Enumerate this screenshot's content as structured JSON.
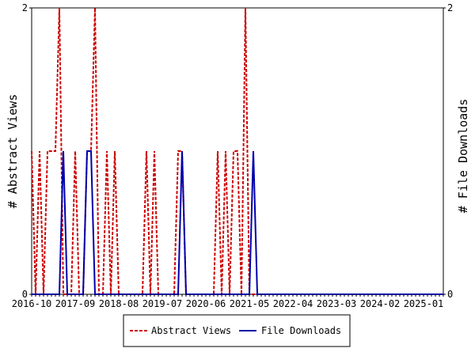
{
  "chart_data": {
    "type": "line",
    "x": [
      "2016-10",
      "2016-11",
      "2016-12",
      "2017-01",
      "2017-02",
      "2017-03",
      "2017-04",
      "2017-05",
      "2017-06",
      "2017-07",
      "2017-08",
      "2017-09",
      "2017-10",
      "2017-11",
      "2017-12",
      "2018-01",
      "2018-02",
      "2018-03",
      "2018-04",
      "2018-05",
      "2018-06",
      "2018-07",
      "2018-08",
      "2018-09",
      "2018-10",
      "2018-11",
      "2018-12",
      "2019-01",
      "2019-02",
      "2019-03",
      "2019-04",
      "2019-05",
      "2019-06",
      "2019-07",
      "2019-08",
      "2019-09",
      "2019-10",
      "2019-11",
      "2019-12",
      "2020-01",
      "2020-02",
      "2020-03",
      "2020-04",
      "2020-05",
      "2020-06",
      "2020-07",
      "2020-08",
      "2020-09",
      "2020-10",
      "2020-11",
      "2020-12",
      "2021-01",
      "2021-02",
      "2021-03",
      "2021-04",
      "2021-05",
      "2021-06",
      "2021-07",
      "2021-08",
      "2021-09",
      "2021-10",
      "2021-11",
      "2021-12",
      "2022-01",
      "2022-02",
      "2022-03",
      "2022-04",
      "2022-05",
      "2022-06",
      "2022-07",
      "2022-08",
      "2022-09",
      "2022-10",
      "2022-11",
      "2022-12",
      "2023-01",
      "2023-02",
      "2023-03",
      "2023-04",
      "2023-05",
      "2023-06",
      "2023-07",
      "2023-08",
      "2023-09",
      "2023-10",
      "2023-11",
      "2023-12",
      "2024-01",
      "2024-02",
      "2024-03",
      "2024-04",
      "2024-05",
      "2024-06",
      "2024-07",
      "2024-08",
      "2024-09",
      "2024-10",
      "2024-11",
      "2024-12",
      "2025-01",
      "2025-02",
      "2025-03",
      "2025-04",
      "2025-05",
      "2025-06"
    ],
    "x_ticks": [
      "2016-10",
      "2017-09",
      "2018-08",
      "2019-07",
      "2020-06",
      "2021-05",
      "2022-04",
      "2023-03",
      "2024-02",
      "2025-01"
    ],
    "ylim_left": [
      0,
      2
    ],
    "ylim_right": [
      0,
      2
    ],
    "y_ticks_left": [
      "0",
      "2"
    ],
    "y_ticks_right": [
      "0",
      "2"
    ],
    "ylabel_left": "# Abstract Views",
    "ylabel_right": "# File Downloads",
    "legend_position": "bottom",
    "grid": false,
    "series": [
      {
        "name": "Abstract Views",
        "color": "#cc0000",
        "style": "dashed",
        "axis": "left",
        "values": [
          1,
          0,
          1,
          0,
          1,
          1,
          1,
          2,
          0,
          0,
          0,
          1,
          0,
          0,
          1,
          1,
          2,
          0,
          0,
          1,
          0,
          1,
          0,
          0,
          0,
          0,
          0,
          0,
          0,
          1,
          0,
          1,
          0,
          0,
          0,
          0,
          0,
          1,
          1,
          0,
          0,
          0,
          0,
          0,
          0,
          0,
          0,
          1,
          0,
          1,
          0,
          1,
          1,
          0,
          2,
          0,
          0,
          0,
          0,
          0,
          0,
          0,
          0,
          0,
          0,
          0,
          0,
          0,
          0,
          0,
          0,
          0,
          0,
          0,
          0,
          0,
          0,
          0,
          0,
          0,
          0,
          0,
          0,
          0,
          0,
          0,
          0,
          0,
          0,
          0,
          0,
          0,
          0,
          0,
          0,
          0,
          0,
          0,
          0,
          0,
          0,
          0,
          0,
          0,
          0
        ]
      },
      {
        "name": "File Downloads",
        "color": "#0000aa",
        "style": "solid",
        "axis": "right",
        "values": [
          0,
          0,
          0,
          0,
          0,
          0,
          0,
          0,
          1,
          0,
          0,
          0,
          0,
          0,
          1,
          1,
          0,
          0,
          0,
          0,
          0,
          0,
          0,
          0,
          0,
          0,
          0,
          0,
          0,
          0,
          0,
          0,
          0,
          0,
          0,
          0,
          0,
          0,
          1,
          0,
          0,
          0,
          0,
          0,
          0,
          0,
          0,
          0,
          0,
          0,
          0,
          0,
          0,
          0,
          0,
          0,
          1,
          0,
          0,
          0,
          0,
          0,
          0,
          0,
          0,
          0,
          0,
          0,
          0,
          0,
          0,
          0,
          0,
          0,
          0,
          0,
          0,
          0,
          0,
          0,
          0,
          0,
          0,
          0,
          0,
          0,
          0,
          0,
          0,
          0,
          0,
          0,
          0,
          0,
          0,
          0,
          0,
          0,
          0,
          0,
          0,
          0,
          0,
          0,
          0
        ]
      }
    ]
  }
}
